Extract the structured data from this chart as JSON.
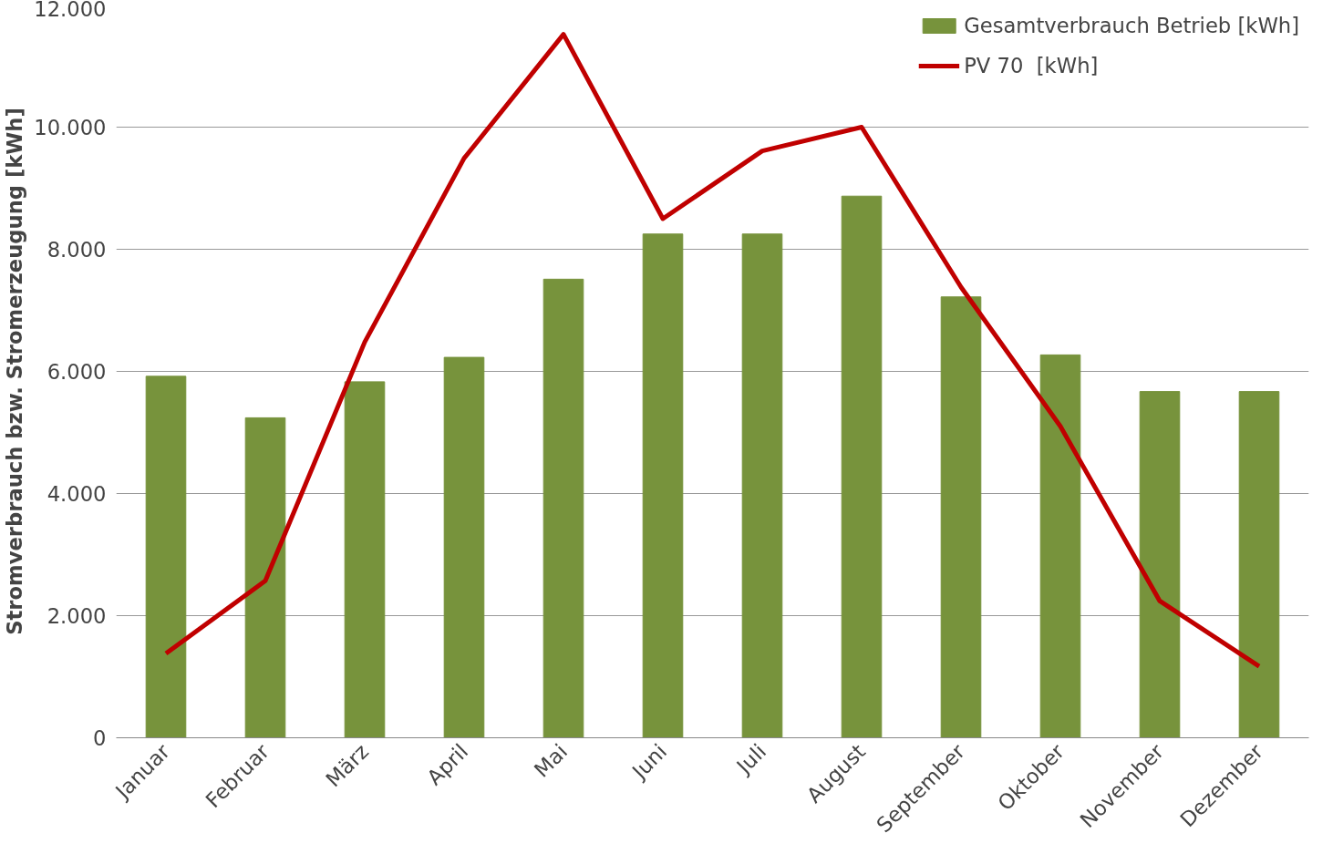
{
  "chart_data": {
    "type": "bar",
    "ylabel": "Stromverbrauch bzw. Stromerzeugung [kWh]",
    "categories": [
      "Januar",
      "Februar",
      "März",
      "April",
      "Mai",
      "Juni",
      "Juli",
      "August",
      "September",
      "Oktober",
      "November",
      "Dezember"
    ],
    "series": [
      {
        "name": "Gesamtverbrauch Betrieb [kWh]",
        "color": "#77933c",
        "values": [
          5920,
          5240,
          5830,
          6230,
          7510,
          8250,
          8250,
          8870,
          7220,
          6270,
          5670,
          5670
        ]
      },
      {
        "name": "PV 70  [kWh]",
        "type": "line",
        "color": "#c00000",
        "values": [
          1380,
          2570,
          6480,
          9490,
          11520,
          8500,
          9610,
          10000,
          7380,
          5100,
          2240,
          1170
        ]
      }
    ],
    "ylim": [
      0,
      12000
    ],
    "yticks": [
      0,
      {
        "value": 2000,
        "label": "2.000"
      },
      {
        "value": 4000,
        "label": "4.000"
      },
      {
        "value": 6000,
        "label": "6.000"
      },
      {
        "value": 8000,
        "label": "8.000"
      },
      {
        "value": 10000,
        "label": "10.000"
      },
      {
        "value": 12000,
        "label": "12.000"
      }
    ],
    "grid": "y",
    "legend": "top right",
    "line_style": "solid",
    "marker": "none"
  }
}
